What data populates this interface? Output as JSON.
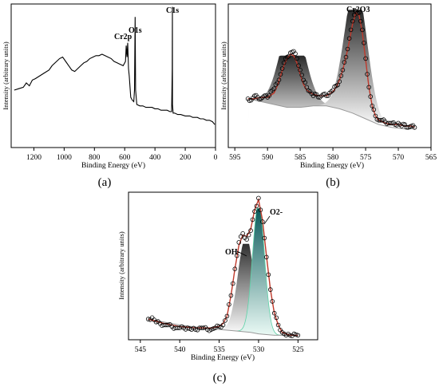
{
  "figure": {
    "panels": [
      "(a)",
      "(b)",
      "(c)"
    ]
  },
  "chart_data": [
    {
      "id": "a",
      "type": "line",
      "panel_label": "(a)",
      "xlabel": "Binding Energy (eV)",
      "ylabel": "Intensity (arbitrary units)",
      "xlim": [
        1350,
        0
      ],
      "x_reversed": true,
      "xticks": [
        1200,
        1000,
        800,
        600,
        400,
        200,
        0
      ],
      "xtick_labels": [
        "1200",
        "1000",
        "800",
        "600",
        "400",
        "200",
        "0"
      ],
      "y_unit": "arbitrary",
      "ylim": [
        0,
        100
      ],
      "annotations": [
        {
          "text": "Cr2p",
          "x": 577
        },
        {
          "text": "O1s",
          "x": 531
        },
        {
          "text": "C1s",
          "x": 285
        }
      ],
      "series": [
        {
          "x": [
            1330,
            1300,
            1270,
            1250,
            1230,
            1210,
            1190,
            1160,
            1130,
            1100,
            1080,
            1050,
            1030,
            1010,
            990,
            970,
            950,
            930,
            910,
            890,
            870,
            850,
            830,
            810,
            790,
            770,
            750,
            730,
            710,
            690,
            670,
            650,
            630,
            610,
            595,
            590,
            585,
            580,
            575,
            570,
            560,
            550,
            540,
            535,
            531,
            528,
            520,
            500,
            480,
            460,
            440,
            420,
            400,
            380,
            360,
            340,
            320,
            300,
            290,
            286,
            285,
            284,
            280,
            270,
            250,
            230,
            200,
            170,
            150,
            120,
            100,
            80,
            60,
            40,
            20,
            5
          ],
          "y": [
            40,
            41,
            42,
            45,
            43,
            47,
            48,
            50,
            52,
            54,
            57,
            60,
            62,
            63,
            60,
            57,
            54,
            53,
            55,
            57,
            59,
            60,
            62,
            63,
            64,
            64,
            65,
            64,
            63,
            62,
            60,
            59,
            58,
            57,
            60,
            71,
            63,
            73,
            55,
            50,
            35,
            33,
            32,
            40,
            91,
            40,
            30,
            29,
            29,
            28,
            28,
            28,
            27,
            27,
            26,
            26,
            26,
            25,
            25,
            55,
            98,
            30,
            24,
            24,
            23,
            23,
            22,
            22,
            21,
            21,
            20,
            20,
            19,
            19,
            18,
            16
          ]
        }
      ]
    },
    {
      "id": "b",
      "type": "scatter",
      "panel_label": "(b)",
      "xlabel": "Binding Energy (eV)",
      "ylabel": "Intensity (arbitrary units)",
      "xlim": [
        596,
        565
      ],
      "x_reversed": true,
      "xticks": [
        595,
        590,
        585,
        580,
        575,
        570,
        565
      ],
      "xtick_labels": [
        "595",
        "590",
        "585",
        "580",
        "575",
        "570",
        "565"
      ],
      "y_unit": "arbitrary",
      "ylim": [
        0,
        100
      ],
      "annotations": [
        {
          "text": "Cr2O3",
          "x": 576.5
        }
      ],
      "peaks": [
        {
          "center": 586.2,
          "height": 64,
          "width": 1.9
        },
        {
          "center": 576.5,
          "height": 96,
          "width": 1.7
        }
      ],
      "series": [
        {
          "name": "data",
          "x": [
            593,
            592.5,
            592,
            591.5,
            591,
            590.5,
            590,
            589.5,
            589,
            588.5,
            588,
            587.5,
            587,
            586.5,
            586,
            585.5,
            585,
            584.5,
            584,
            583.5,
            583,
            582.5,
            582,
            581.5,
            581,
            580.5,
            580,
            579.5,
            579,
            578.5,
            578,
            577.5,
            577,
            576.5,
            576,
            575.5,
            575,
            574.5,
            574,
            573.5,
            573,
            572.5,
            572,
            571.5,
            571,
            570.5,
            570,
            569.5,
            569,
            568.5,
            568,
            567.5
          ],
          "y": [
            34,
            33,
            36,
            35,
            34,
            36,
            35,
            39,
            41,
            45,
            51,
            59,
            63,
            66,
            67,
            62,
            54,
            47,
            42,
            39,
            36,
            37,
            35,
            37,
            36,
            38,
            40,
            43,
            46,
            54,
            63,
            76,
            88,
            95,
            94,
            82,
            62,
            42,
            29,
            22,
            19,
            19,
            18,
            17,
            17,
            16,
            17,
            15,
            16,
            14,
            15,
            14
          ]
        },
        {
          "name": "fit",
          "x": [
            593,
            592,
            591,
            590,
            589,
            588.5,
            588,
            587.5,
            587,
            586.5,
            586,
            585.5,
            585,
            584.5,
            584,
            583,
            582,
            581,
            580,
            579.5,
            579,
            578.5,
            578,
            577.5,
            577,
            576.5,
            576,
            575.5,
            575,
            574.5,
            574,
            573.5,
            573,
            572,
            571,
            570,
            569,
            568,
            567.5
          ],
          "y": [
            34,
            34,
            35,
            35,
            38,
            43,
            50,
            57,
            62,
            65,
            64,
            59,
            51,
            44,
            40,
            37,
            36,
            36,
            39,
            42,
            47,
            54,
            63,
            74,
            86,
            94,
            92,
            80,
            61,
            42,
            29,
            22,
            19,
            17,
            16,
            16,
            15,
            15,
            14
          ]
        },
        {
          "name": "background",
          "x": [
            593,
            591,
            589,
            587,
            585,
            583,
            581,
            579,
            577,
            575,
            573,
            571,
            569,
            567.5
          ],
          "y": [
            34,
            32,
            30,
            28,
            28,
            29,
            29,
            27,
            24,
            20,
            16,
            14,
            13,
            13
          ]
        }
      ]
    },
    {
      "id": "c",
      "type": "scatter",
      "panel_label": "(c)",
      "xlabel": "Binding Energy (eV)",
      "ylabel": "Intensity (arbitrary units)",
      "xlim": [
        546.5,
        522.5
      ],
      "x_reversed": true,
      "xticks": [
        545,
        540,
        535,
        530,
        525
      ],
      "xtick_labels": [
        "545",
        "540",
        "535",
        "530",
        "525"
      ],
      "y_unit": "arbitrary",
      "ylim": [
        0,
        100
      ],
      "annotations": [
        {
          "text": "OH-",
          "x": 531.6
        },
        {
          "text": "O2-",
          "x": 530.0
        }
      ],
      "peaks": [
        {
          "center": 531.6,
          "height": 65,
          "width": 1.0
        },
        {
          "center": 530.0,
          "height": 89,
          "width": 0.75
        }
      ],
      "series": [
        {
          "name": "data",
          "x": [
            544,
            543.5,
            543,
            542.5,
            542,
            541.5,
            541,
            540.5,
            540,
            539.5,
            539,
            538.5,
            538,
            537.5,
            537,
            536.5,
            536,
            535.5,
            535,
            534.5,
            534,
            533.5,
            533,
            532.5,
            532,
            531.5,
            531,
            530.5,
            530,
            529.5,
            529,
            528.5,
            528,
            527.5,
            527,
            526.5,
            526,
            525.5,
            525
          ],
          "y": [
            14,
            15,
            12,
            11,
            10,
            10,
            9,
            8,
            8,
            8,
            8,
            7,
            7,
            8,
            8,
            7,
            7,
            8,
            9,
            10,
            16,
            30,
            48,
            66,
            72,
            68,
            74,
            87,
            96,
            80,
            56,
            34,
            18,
            10,
            5,
            3,
            3,
            4,
            3
          ]
        },
        {
          "name": "fit",
          "x": [
            544,
            542,
            540,
            538,
            536,
            535,
            534.5,
            534,
            533.5,
            533,
            532.5,
            532,
            531.5,
            531,
            530.5,
            530,
            529.5,
            529,
            528.5,
            528,
            527.5,
            527,
            526,
            525
          ],
          "y": [
            14,
            11,
            9,
            8,
            8,
            9,
            11,
            16,
            30,
            48,
            64,
            71,
            70,
            75,
            88,
            95,
            81,
            57,
            34,
            18,
            10,
            5,
            3,
            3
          ]
        },
        {
          "name": "background",
          "x": [
            544,
            540,
            537,
            535,
            533,
            531,
            530,
            529,
            528,
            527,
            526,
            525
          ],
          "y": [
            14,
            10,
            8,
            7,
            6,
            5,
            4,
            3.5,
            3,
            3,
            3,
            3
          ]
        }
      ]
    }
  ]
}
